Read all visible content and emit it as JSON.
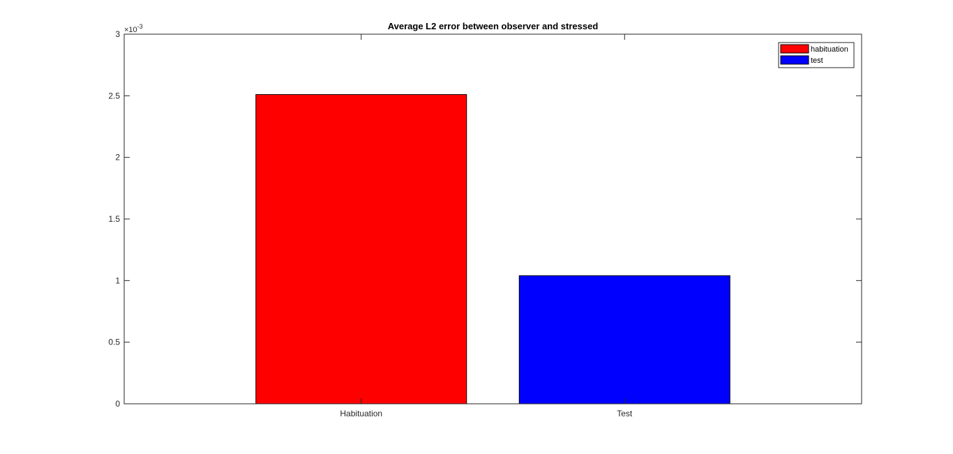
{
  "chart_data": {
    "type": "bar",
    "title": "Average L2 error between observer and stressed",
    "categories": [
      "Habituation",
      "Test"
    ],
    "series": [
      {
        "name": "habituation",
        "color": "#ff0000",
        "values": [
          0.00251,
          null
        ]
      },
      {
        "name": "test",
        "color": "#0000ff",
        "values": [
          null,
          0.00104
        ]
      }
    ],
    "xlabel": "",
    "ylabel": "",
    "ylim": [
      0,
      0.003
    ],
    "yticks": [
      0,
      0.0005,
      0.001,
      0.0015,
      0.002,
      0.0025,
      0.003
    ],
    "ytick_labels": [
      "0",
      "0.5",
      "1",
      "1.5",
      "2",
      "2.5",
      "3"
    ],
    "y_exponent_label": "×10",
    "y_exponent_power": "-3",
    "xlim": [
      0.1,
      2.9
    ],
    "bar_width": 0.8,
    "grid": false,
    "legend_position": "top-right"
  }
}
